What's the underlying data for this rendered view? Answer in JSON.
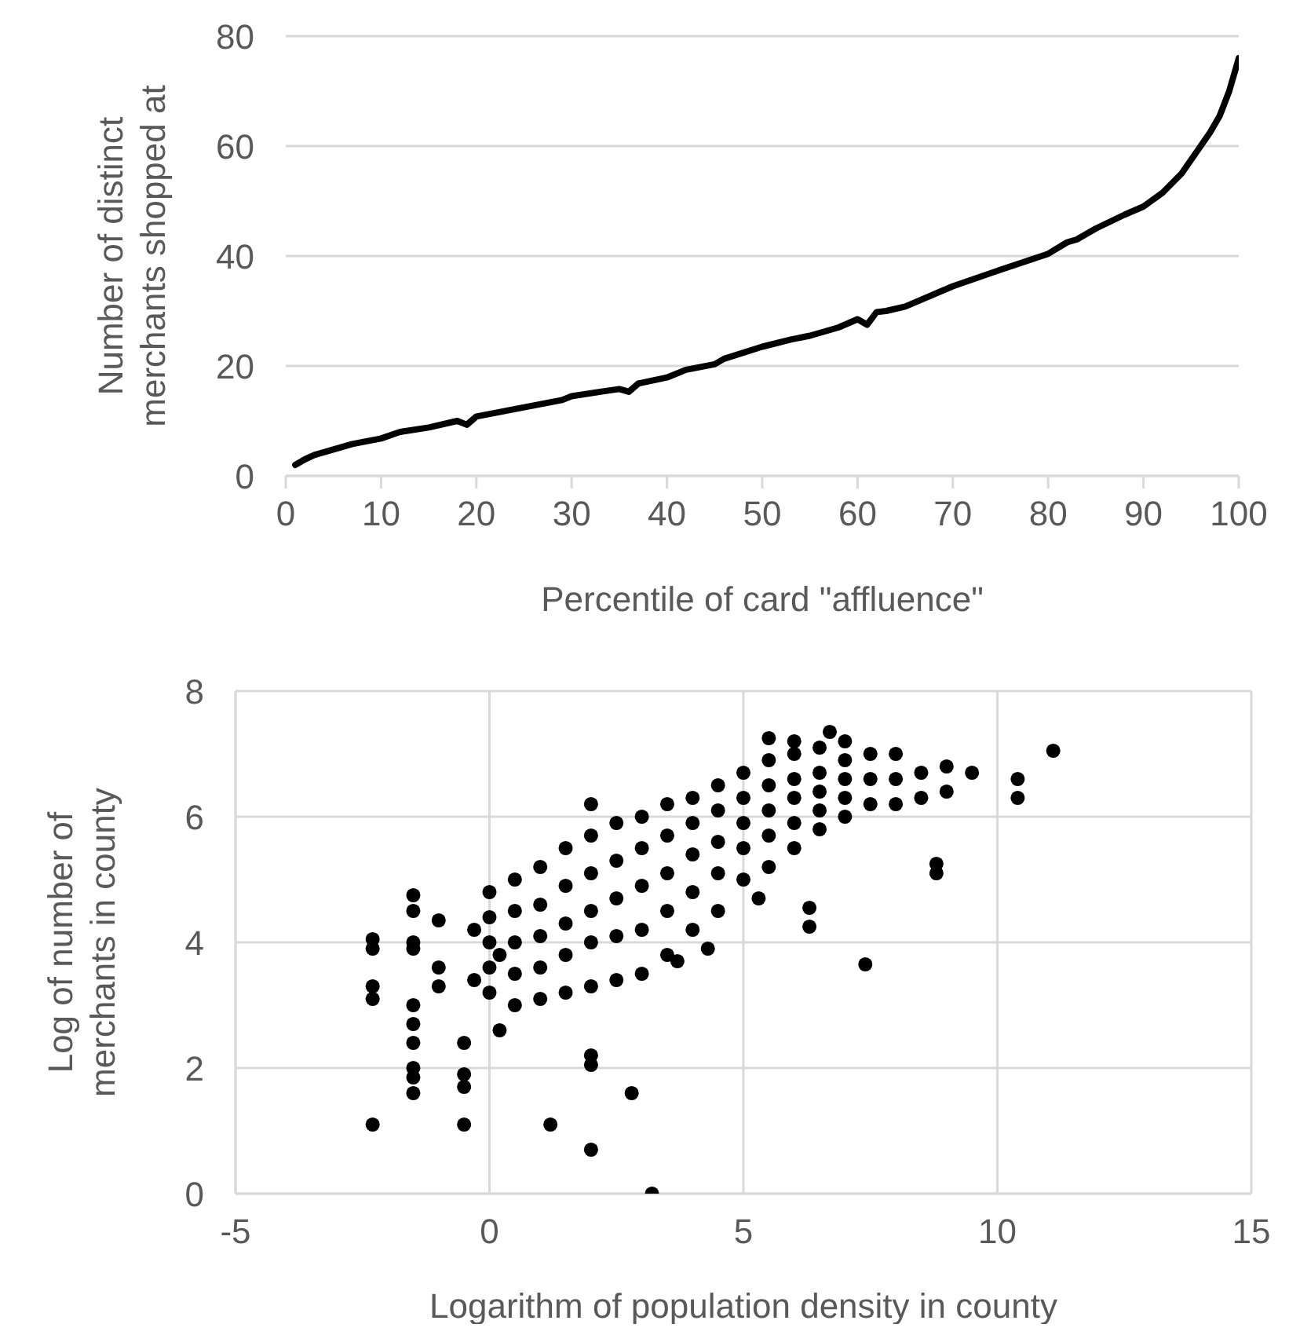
{
  "chart_data": [
    {
      "type": "line",
      "xlabel": "Percentile of card \"affluence\"",
      "ylabel": "Number of distinct merchants shopped at",
      "grid": "y",
      "marker": "none",
      "line_style": "solid",
      "xlim": [
        0,
        100
      ],
      "xticks": [
        0,
        10,
        20,
        30,
        40,
        50,
        60,
        70,
        80,
        90,
        100
      ],
      "ylim": [
        0,
        80
      ],
      "yticks": [
        0,
        20,
        40,
        60,
        80
      ],
      "series": [
        {
          "color": "#000000",
          "x": [
            1,
            2,
            3,
            5,
            7,
            10,
            12,
            15,
            18,
            19,
            20,
            23,
            26,
            29,
            30,
            33,
            35,
            36,
            37,
            40,
            42,
            45,
            46,
            50,
            53,
            55,
            58,
            60,
            61,
            62,
            63,
            65,
            70,
            75,
            80,
            82,
            83,
            85,
            88,
            90,
            92,
            94,
            95,
            96,
            97,
            98,
            99,
            100
          ],
          "values": [
            2,
            3,
            3.8,
            4.8,
            5.8,
            6.8,
            8,
            8.8,
            10,
            9.3,
            10.8,
            11.8,
            12.8,
            13.8,
            14.5,
            15.3,
            15.8,
            15.3,
            16.8,
            17.9,
            19.3,
            20.3,
            21.3,
            23.5,
            24.8,
            25.5,
            27,
            28.5,
            27.5,
            29.8,
            30,
            30.8,
            34.5,
            37.5,
            40.4,
            42.5,
            43,
            45,
            47.5,
            49,
            51.5,
            55,
            57.5,
            60,
            62.5,
            65.5,
            70,
            76
          ]
        }
      ]
    },
    {
      "type": "scatter",
      "xlabel": "Logarithm of population density in county",
      "ylabel": "Log of number of merchants in county",
      "grid": true,
      "marker": "circle",
      "xlim": [
        -5,
        15
      ],
      "xticks": [
        -5,
        0,
        5,
        10,
        15
      ],
      "ylim": [
        0,
        8
      ],
      "yticks": [
        0,
        2,
        4,
        6,
        8
      ],
      "series": [
        {
          "color": "#000000",
          "x": [
            -2.3,
            -2.3,
            -2.3,
            -2.3,
            -2.3,
            -1.5,
            -1.5,
            -1.5,
            -1.5,
            -1.5,
            -1.5,
            -1.5,
            -1.5,
            -1.5,
            -1.5,
            -1,
            -1,
            -1,
            -0.5,
            -0.5,
            -0.5,
            -0.5,
            1.2,
            2,
            2,
            2,
            3.2,
            2.8,
            7.4,
            11.1,
            10.4,
            10.4,
            9.5,
            8.8,
            8.8,
            6.3,
            6.3,
            5.3,
            6.7,
            5.5,
            6,
            2,
            0,
            0,
            0,
            0,
            0,
            0.5,
            0.5,
            0.5,
            0.5,
            0.5,
            1,
            1,
            1,
            1,
            1,
            1.5,
            1.5,
            1.5,
            1.5,
            1.5,
            2,
            2,
            2,
            2,
            2,
            2.5,
            2.5,
            2.5,
            2.5,
            2.5,
            3,
            3,
            3,
            3,
            3,
            3.5,
            3.5,
            3.5,
            3.5,
            3.5,
            4,
            4,
            4,
            4,
            4,
            4.5,
            4.5,
            4.5,
            4.5,
            4.5,
            5,
            5,
            5,
            5,
            5,
            5.5,
            5.5,
            5.5,
            5.5,
            5.5,
            6,
            6,
            6,
            6,
            6,
            6.5,
            6.5,
            6.5,
            6.5,
            6.5,
            7,
            7,
            7,
            7,
            7,
            7.5,
            7.5,
            7.5,
            8,
            8,
            8,
            8.5,
            8.5,
            9,
            9,
            -0.3,
            -0.3,
            0.2,
            0.2,
            4.3,
            3.7
          ],
          "values": [
            4.05,
            3.9,
            3.3,
            3.1,
            1.1,
            4.75,
            4.5,
            4,
            3.9,
            3,
            2.7,
            2.4,
            2,
            1.85,
            1.6,
            4.35,
            3.6,
            3.3,
            1.1,
            1.9,
            1.7,
            2.4,
            1.1,
            0.7,
            2.2,
            6.2,
            0,
            1.6,
            3.65,
            7.05,
            6.6,
            6.3,
            6.7,
            5.25,
            5.1,
            4.25,
            4.55,
            4.7,
            7.35,
            7.25,
            7.2,
            2.05,
            3.2,
            3.6,
            4,
            4.4,
            4.8,
            3,
            3.5,
            4,
            4.5,
            5,
            3.1,
            3.6,
            4.1,
            4.6,
            5.2,
            3.2,
            3.8,
            4.3,
            4.9,
            5.5,
            3.3,
            4,
            4.5,
            5.1,
            5.7,
            3.4,
            4.1,
            4.7,
            5.3,
            5.9,
            3.5,
            4.2,
            4.9,
            5.5,
            6,
            3.8,
            4.5,
            5.1,
            5.7,
            6.2,
            4.2,
            4.8,
            5.4,
            5.9,
            6.3,
            4.5,
            5.1,
            5.6,
            6.1,
            6.5,
            5,
            5.5,
            5.9,
            6.3,
            6.7,
            5.2,
            5.7,
            6.1,
            6.5,
            6.9,
            5.5,
            5.9,
            6.3,
            6.6,
            7,
            5.8,
            6.1,
            6.4,
            6.7,
            7.1,
            6,
            6.3,
            6.6,
            6.9,
            7.2,
            6.2,
            6.6,
            7,
            6.2,
            6.6,
            7,
            6.3,
            6.7,
            6.4,
            6.8,
            3.4,
            4.2,
            2.6,
            3.8,
            3.9,
            3.7
          ]
        }
      ]
    }
  ]
}
